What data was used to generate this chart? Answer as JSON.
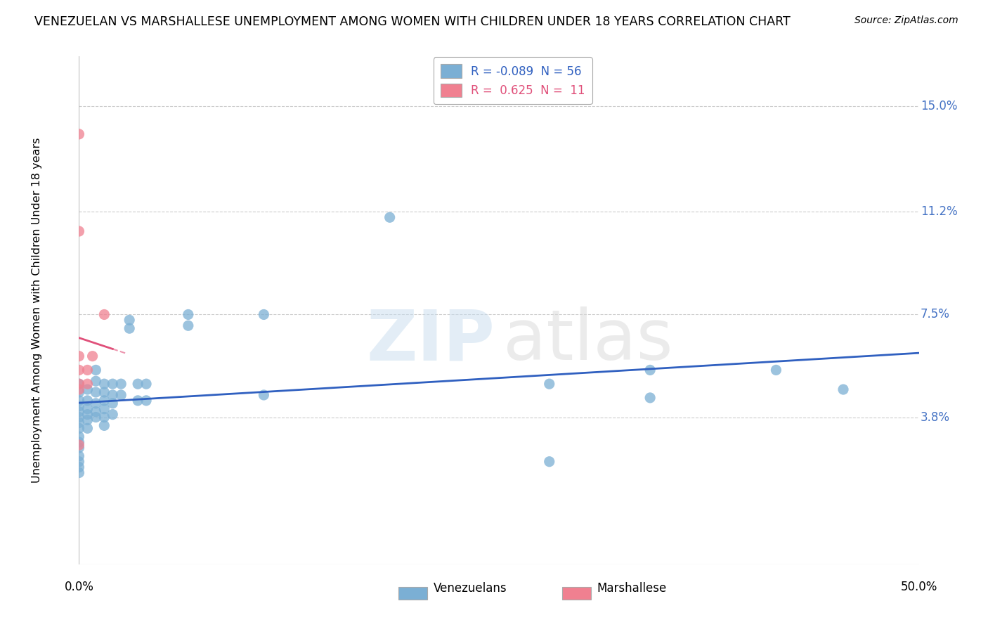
{
  "title": "VENEZUELAN VS MARSHALLESE UNEMPLOYMENT AMONG WOMEN WITH CHILDREN UNDER 18 YEARS CORRELATION CHART",
  "source": "Source: ZipAtlas.com",
  "ylabel": "Unemployment Among Women with Children Under 18 years",
  "ytick_labels": [
    "3.8%",
    "7.5%",
    "11.2%",
    "15.0%"
  ],
  "ytick_values": [
    0.038,
    0.075,
    0.112,
    0.15
  ],
  "xlim": [
    0.0,
    0.5
  ],
  "ylim": [
    -0.015,
    0.168
  ],
  "venezuelan_color": "#7bafd4",
  "marshallese_color": "#f08090",
  "venezuelan_trend_color": "#3060c0",
  "marshallese_trend_color": "#e0507a",
  "venezuelan_points": [
    [
      0.0,
      0.05
    ],
    [
      0.0,
      0.047
    ],
    [
      0.0,
      0.044
    ],
    [
      0.0,
      0.042
    ],
    [
      0.0,
      0.04
    ],
    [
      0.0,
      0.038
    ],
    [
      0.0,
      0.036
    ],
    [
      0.0,
      0.034
    ],
    [
      0.0,
      0.031
    ],
    [
      0.0,
      0.029
    ],
    [
      0.0,
      0.027
    ],
    [
      0.0,
      0.024
    ],
    [
      0.0,
      0.022
    ],
    [
      0.0,
      0.02
    ],
    [
      0.0,
      0.018
    ],
    [
      0.005,
      0.048
    ],
    [
      0.005,
      0.044
    ],
    [
      0.005,
      0.041
    ],
    [
      0.005,
      0.039
    ],
    [
      0.005,
      0.037
    ],
    [
      0.005,
      0.034
    ],
    [
      0.01,
      0.055
    ],
    [
      0.01,
      0.051
    ],
    [
      0.01,
      0.047
    ],
    [
      0.01,
      0.043
    ],
    [
      0.01,
      0.04
    ],
    [
      0.01,
      0.038
    ],
    [
      0.015,
      0.05
    ],
    [
      0.015,
      0.047
    ],
    [
      0.015,
      0.044
    ],
    [
      0.015,
      0.041
    ],
    [
      0.015,
      0.038
    ],
    [
      0.015,
      0.035
    ],
    [
      0.02,
      0.05
    ],
    [
      0.02,
      0.046
    ],
    [
      0.02,
      0.043
    ],
    [
      0.02,
      0.039
    ],
    [
      0.025,
      0.05
    ],
    [
      0.025,
      0.046
    ],
    [
      0.03,
      0.073
    ],
    [
      0.03,
      0.07
    ],
    [
      0.035,
      0.05
    ],
    [
      0.035,
      0.044
    ],
    [
      0.04,
      0.05
    ],
    [
      0.04,
      0.044
    ],
    [
      0.065,
      0.075
    ],
    [
      0.065,
      0.071
    ],
    [
      0.11,
      0.075
    ],
    [
      0.11,
      0.046
    ],
    [
      0.185,
      0.11
    ],
    [
      0.28,
      0.05
    ],
    [
      0.28,
      0.022
    ],
    [
      0.34,
      0.055
    ],
    [
      0.34,
      0.045
    ],
    [
      0.415,
      0.055
    ],
    [
      0.455,
      0.048
    ]
  ],
  "marshallese_points": [
    [
      0.0,
      0.14
    ],
    [
      0.0,
      0.105
    ],
    [
      0.0,
      0.06
    ],
    [
      0.0,
      0.055
    ],
    [
      0.0,
      0.05
    ],
    [
      0.0,
      0.048
    ],
    [
      0.0,
      0.028
    ],
    [
      0.005,
      0.055
    ],
    [
      0.005,
      0.05
    ],
    [
      0.008,
      0.06
    ],
    [
      0.015,
      0.075
    ]
  ],
  "legend_R_ven": "R = ",
  "legend_val_ven": "-0.089",
  "legend_N_ven": "  N = 56",
  "legend_R_mar": "R = ",
  "legend_val_mar": " 0.625",
  "legend_N_mar": "  N =  11"
}
